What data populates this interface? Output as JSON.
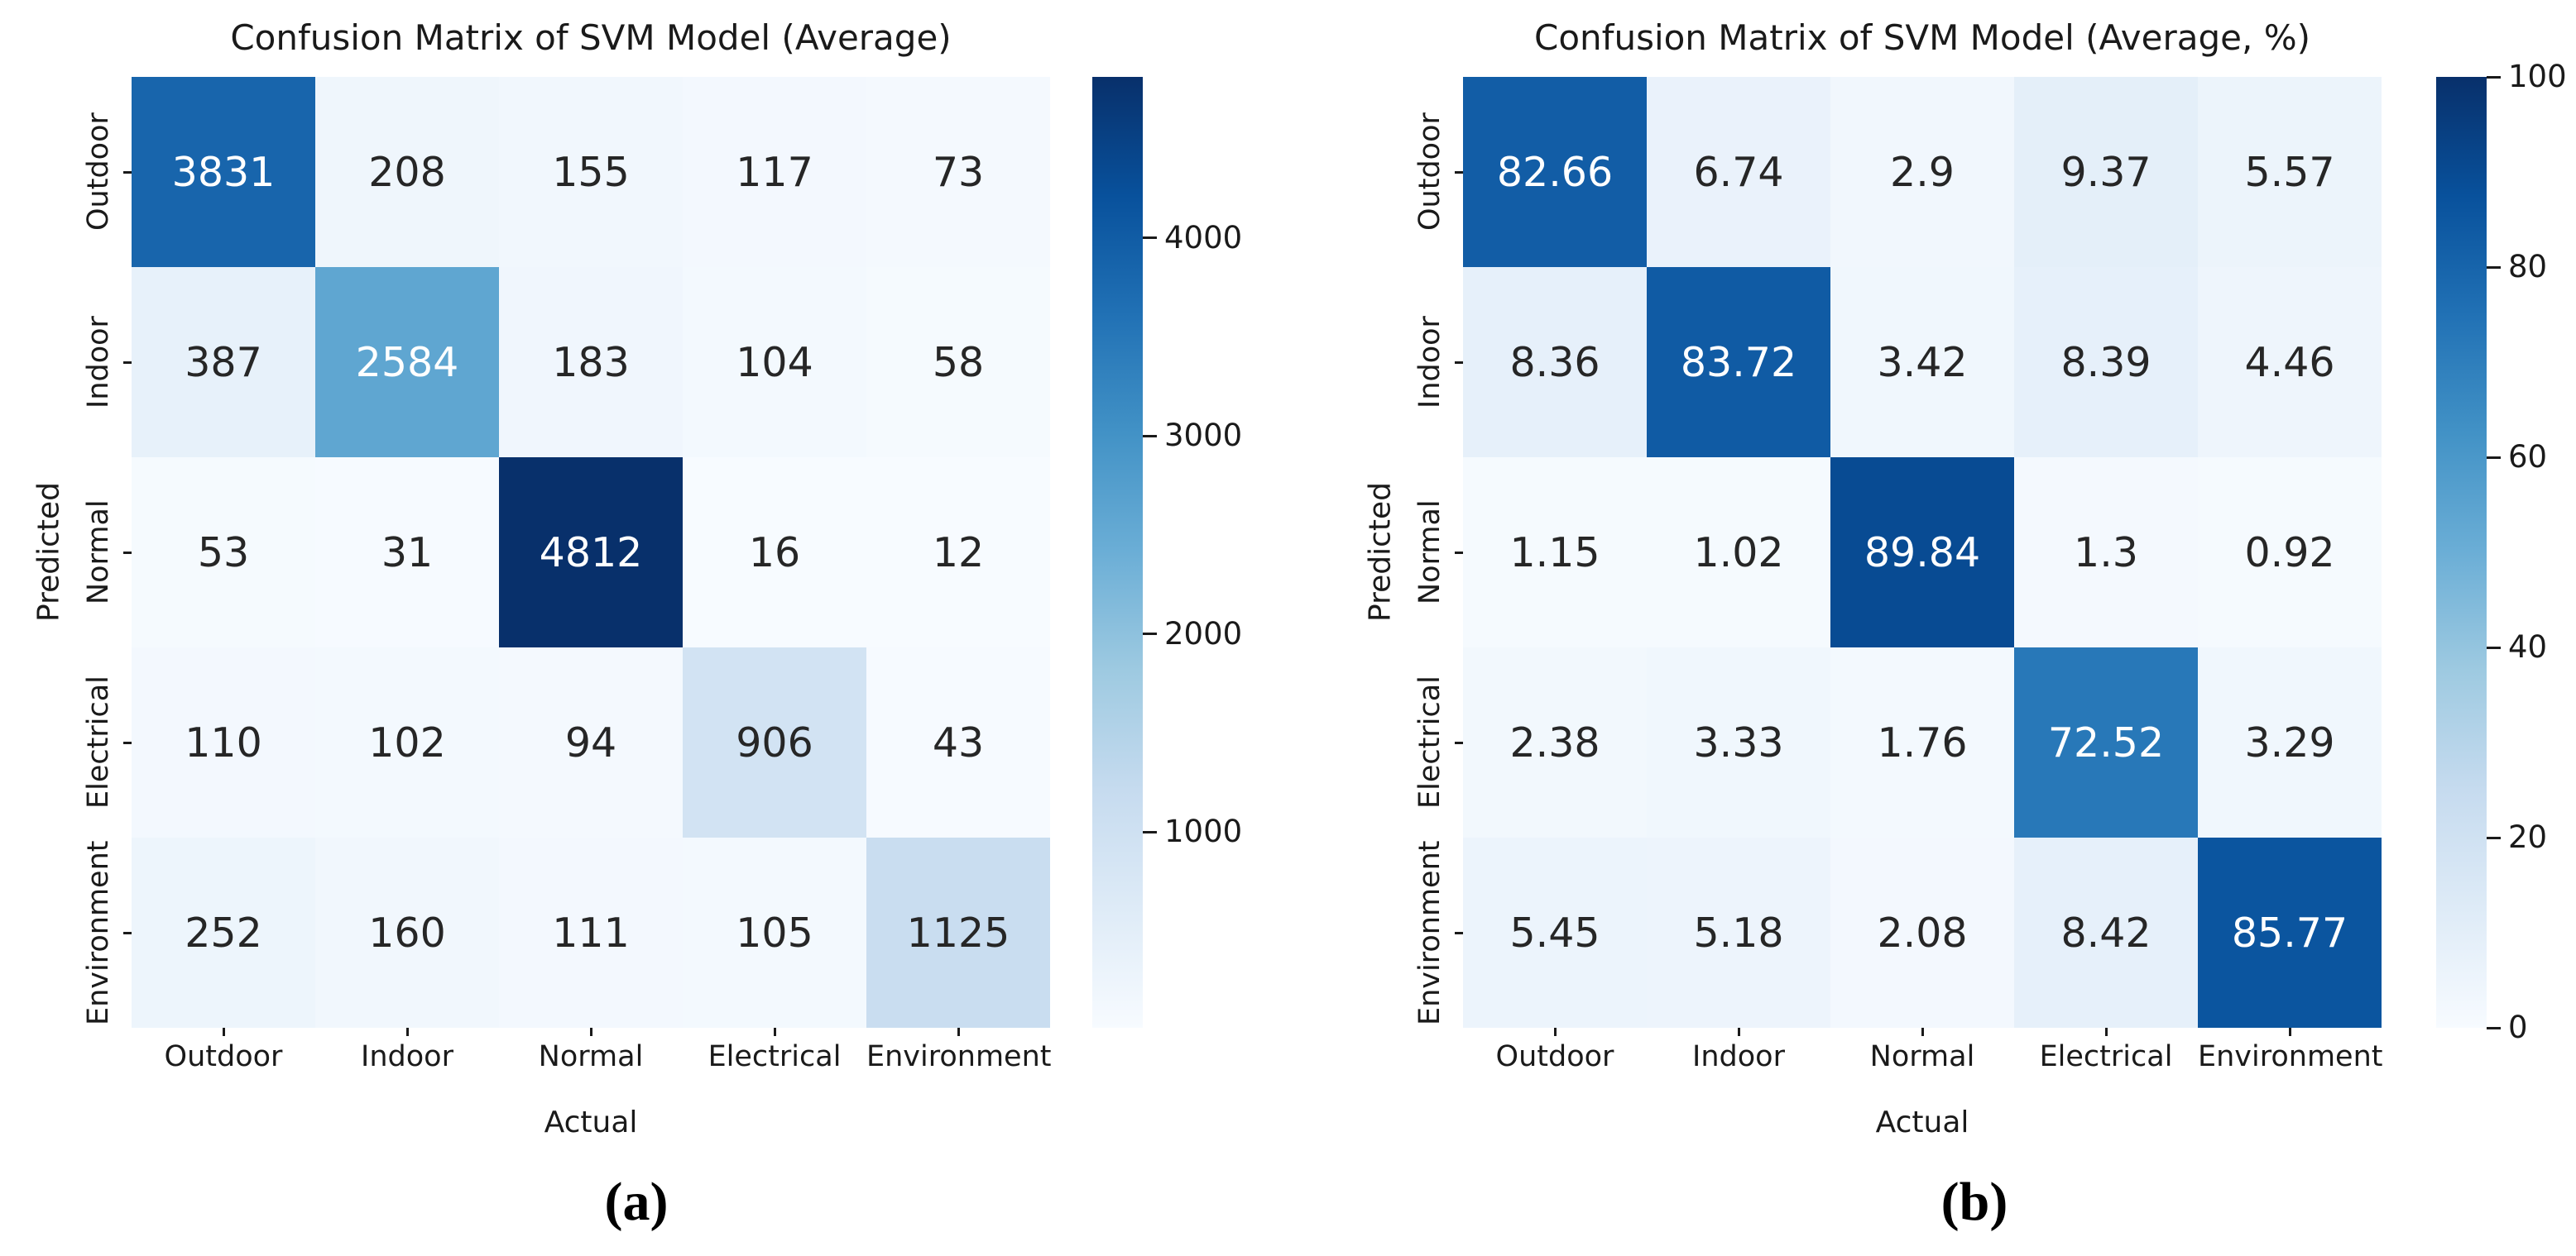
{
  "colors": {
    "background": "#ffffff",
    "axis_text": "#1a1a1a",
    "annotation_dark": "#262626",
    "annotation_light": "#ffffff",
    "cmap_blues": [
      "#f7fbff",
      "#deebf7",
      "#c6dbef",
      "#9ecae1",
      "#6baed6",
      "#4292c6",
      "#2171b5",
      "#08519c",
      "#08306b"
    ]
  },
  "chart_data": [
    {
      "type": "heatmap",
      "panel_label": "(a)",
      "title": "Confusion Matrix of SVM Model (Average)",
      "xlabel": "Actual",
      "ylabel": "Predicted",
      "x_categories": [
        "Outdoor",
        "Indoor",
        "Normal",
        "Electrical",
        "Environment"
      ],
      "y_categories": [
        "Outdoor",
        "Indoor",
        "Normal",
        "Electrical",
        "Environment"
      ],
      "values": [
        [
          3831,
          208,
          155,
          117,
          73
        ],
        [
          387,
          2584,
          183,
          104,
          58
        ],
        [
          53,
          31,
          4812,
          16,
          12
        ],
        [
          110,
          102,
          94,
          906,
          43
        ],
        [
          252,
          160,
          111,
          105,
          1125
        ]
      ],
      "vmin": 12,
      "vmax": 4812,
      "colormap": "Blues",
      "colorbar_position": "right",
      "colorbar_ticks": [
        1000,
        2000,
        3000,
        4000
      ],
      "grid": false
    },
    {
      "type": "heatmap",
      "panel_label": "(b)",
      "title": "Confusion Matrix of SVM Model (Average, %)",
      "xlabel": "Actual",
      "ylabel": "Predicted",
      "x_categories": [
        "Outdoor",
        "Indoor",
        "Normal",
        "Electrical",
        "Environment"
      ],
      "y_categories": [
        "Outdoor",
        "Indoor",
        "Normal",
        "Electrical",
        "Environment"
      ],
      "values": [
        [
          82.66,
          6.74,
          2.9,
          9.37,
          5.57
        ],
        [
          8.36,
          83.72,
          3.42,
          8.39,
          4.46
        ],
        [
          1.15,
          1.02,
          89.84,
          1.3,
          0.92
        ],
        [
          2.38,
          3.33,
          1.76,
          72.52,
          3.29
        ],
        [
          5.45,
          5.18,
          2.08,
          8.42,
          85.77
        ]
      ],
      "vmin": 0,
      "vmax": 100,
      "colormap": "Blues",
      "colorbar_position": "right",
      "colorbar_ticks": [
        0,
        20,
        40,
        60,
        80,
        100
      ],
      "grid": false
    }
  ]
}
